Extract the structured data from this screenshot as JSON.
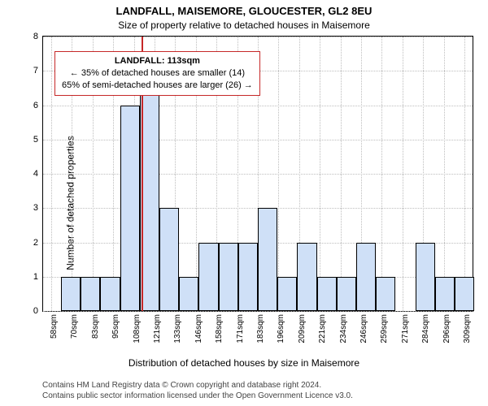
{
  "chart": {
    "type": "histogram",
    "title": "LANDFALL, MAISEMORE, GLOUCESTER, GL2 8EU",
    "subtitle": "Size of property relative to detached houses in Maisemore",
    "y_axis_label": "Number of detached properties",
    "x_axis_label": "Distribution of detached houses by size in Maisemore",
    "footer_line1": "Contains HM Land Registry data © Crown copyright and database right 2024.",
    "footer_line2": "Contains public sector information licensed under the Open Government Licence v3.0.",
    "ylim": [
      0,
      8
    ],
    "y_ticks": [
      0,
      1,
      2,
      3,
      4,
      5,
      6,
      7,
      8
    ],
    "x_tick_labels": [
      "58sqm",
      "70sqm",
      "83sqm",
      "95sqm",
      "108sqm",
      "121sqm",
      "133sqm",
      "146sqm",
      "158sqm",
      "171sqm",
      "183sqm",
      "196sqm",
      "209sqm",
      "221sqm",
      "234sqm",
      "246sqm",
      "259sqm",
      "271sqm",
      "284sqm",
      "296sqm",
      "309sqm"
    ],
    "x_data_min": 58,
    "x_data_max": 309,
    "values": [
      0,
      1,
      1,
      1,
      6,
      7,
      3,
      1,
      2,
      2,
      2,
      3,
      1,
      2,
      1,
      1,
      2,
      1,
      0,
      2,
      1,
      1
    ],
    "bar_fill": "#cfe0f7",
    "bar_stroke": "#000000",
    "bar_stroke_width": 1,
    "background_color": "#ffffff",
    "grid_color": "#bdbdbd",
    "axis_color": "#000000",
    "info_box": {
      "border_color": "#c62828",
      "heading": "LANDFALL: 113sqm",
      "line2": "← 35% of detached houses are smaller (14)",
      "line3": "65% of semi-detached houses are larger (26) →"
    },
    "reference_line": {
      "value": 113,
      "color": "#c62828",
      "width": 2
    },
    "title_fontsize": 13,
    "subtitle_fontsize": 12,
    "label_fontsize": 12,
    "tick_fontsize": 11,
    "footer_fontsize": 10
  }
}
